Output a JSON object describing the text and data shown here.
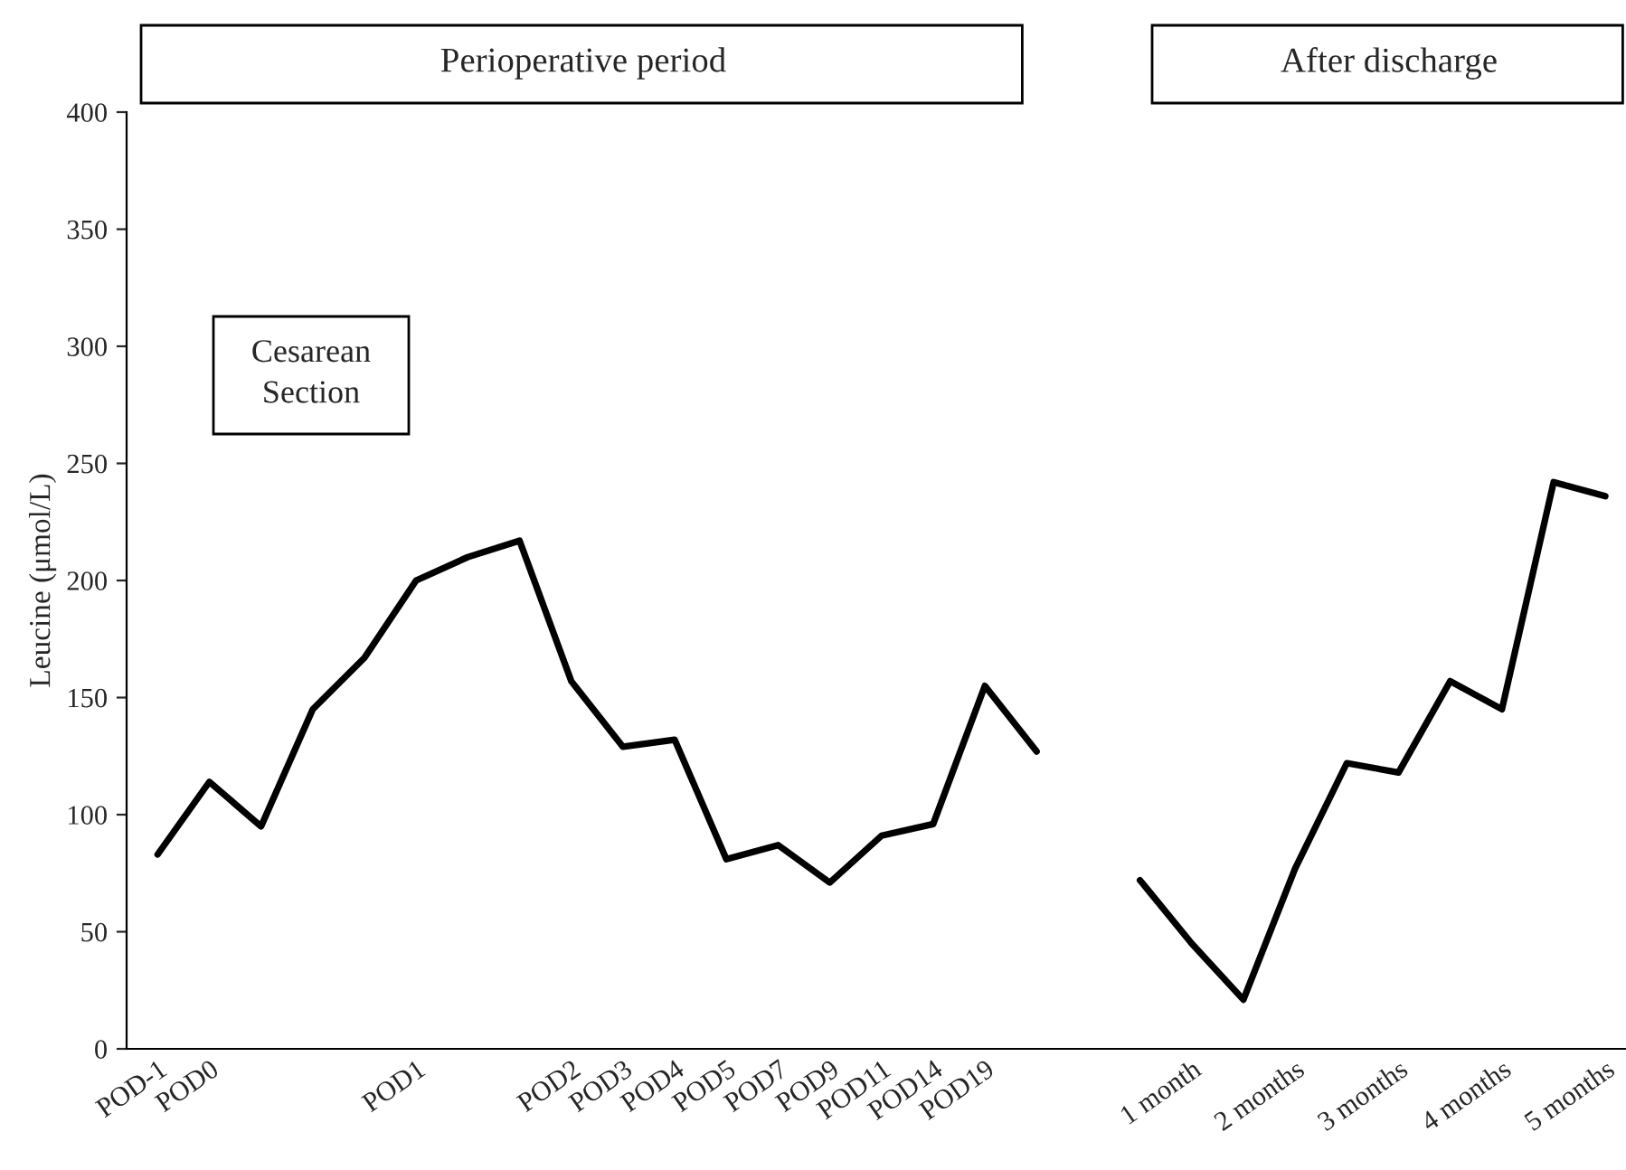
{
  "chart_data": {
    "type": "line",
    "ylabel": "Leucine (μmol/L)",
    "categories": [
      "POD-1",
      "POD0",
      null,
      null,
      null,
      "POD1",
      null,
      null,
      "POD2",
      "POD3",
      "POD4",
      "POD5",
      "POD7",
      "POD9",
      "POD11",
      "POD14",
      "POD19",
      null,
      null,
      null,
      "1 month",
      null,
      "2 months",
      null,
      "3 months",
      null,
      "4 months",
      null,
      "5 months"
    ],
    "series": [
      {
        "color": "#000000",
        "values": [
          83,
          114,
          95,
          145,
          167,
          200,
          210,
          217,
          157,
          129,
          132,
          81,
          87,
          71,
          91,
          96,
          155,
          127,
          null,
          72,
          45,
          21,
          77,
          122,
          118,
          157,
          145,
          242,
          236
        ]
      }
    ],
    "ylim": [
      0,
      400
    ],
    "yticks": [
      0,
      50,
      100,
      150,
      200,
      250,
      300,
      350,
      400
    ],
    "grid": false,
    "legend": false,
    "marker": "none",
    "line_style": "solid",
    "annotations": [
      "Perioperative period",
      "After discharge",
      "Cesarean\nSection"
    ]
  }
}
